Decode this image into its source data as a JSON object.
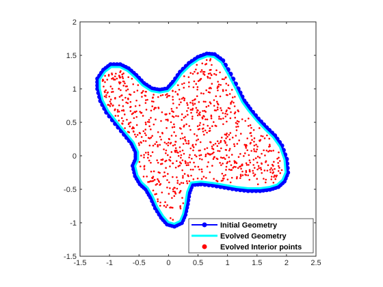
{
  "chart_data": {
    "type": "line",
    "title": "",
    "xlabel": "",
    "ylabel": "",
    "xlim": [
      -1.5,
      2.5
    ],
    "ylim": [
      -1.5,
      2
    ],
    "x_ticks": [
      -1.5,
      -1,
      -0.5,
      0,
      0.5,
      1,
      1.5,
      2,
      2.5
    ],
    "x_tick_labels": [
      "-1.5",
      "-1",
      "-0.5",
      "0",
      "0.5",
      "1",
      "1.5",
      "2",
      "2.5"
    ],
    "y_ticks": [
      -1.5,
      -1,
      -0.5,
      0,
      0.5,
      1,
      1.5,
      2
    ],
    "y_tick_labels": [
      "-1.5",
      "-1",
      "-0.5",
      "0",
      "0.5",
      "1",
      "1.5",
      "2"
    ],
    "grid": false,
    "legend_position": "bottom-right",
    "aspect": "equal",
    "series": [
      {
        "name": "Initial Geometry",
        "style": "line-with-markers",
        "color": "#0000ff",
        "closed": true,
        "x": [
          -1.1,
          -0.98,
          -0.82,
          -0.68,
          -0.55,
          -0.42,
          -0.28,
          -0.15,
          -0.02,
          0.08,
          0.2,
          0.35,
          0.5,
          0.65,
          0.78,
          0.92,
          1.05,
          1.18,
          1.28,
          1.38,
          1.52,
          1.66,
          1.8,
          1.92,
          2.0,
          2.02,
          1.96,
          1.86,
          1.72,
          1.55,
          1.35,
          1.15,
          0.95,
          0.75,
          0.55,
          0.4,
          0.35,
          0.32,
          0.28,
          0.22,
          0.1,
          -0.02,
          -0.12,
          -0.22,
          -0.3,
          -0.38,
          -0.48,
          -0.56,
          -0.6,
          -0.55,
          -0.55,
          -0.62,
          -0.75,
          -0.9,
          -1.05,
          -1.15,
          -1.2,
          -1.2
        ],
        "y": [
          1.28,
          1.36,
          1.36,
          1.3,
          1.2,
          1.08,
          1.0,
          0.98,
          1.0,
          1.1,
          1.25,
          1.38,
          1.47,
          1.52,
          1.51,
          1.42,
          1.22,
          1.0,
          0.82,
          0.7,
          0.55,
          0.42,
          0.3,
          0.15,
          -0.05,
          -0.25,
          -0.38,
          -0.46,
          -0.5,
          -0.52,
          -0.52,
          -0.5,
          -0.47,
          -0.44,
          -0.42,
          -0.43,
          -0.55,
          -0.72,
          -0.88,
          -1.0,
          -1.05,
          -1.02,
          -0.92,
          -0.78,
          -0.62,
          -0.5,
          -0.42,
          -0.3,
          -0.15,
          -0.05,
          0.05,
          0.18,
          0.32,
          0.48,
          0.65,
          0.82,
          1.0,
          1.15
        ]
      },
      {
        "name": "Evolved Geometry",
        "style": "line",
        "color": "#00ffff",
        "closed": true,
        "source": "initial-inset",
        "inset": 0.035
      },
      {
        "name": "Evolved Interior points",
        "style": "scatter",
        "color": "#ff0000",
        "count": 900,
        "region": "inside-evolved-geometry"
      }
    ],
    "legend": [
      {
        "label": "Initial Geometry",
        "color": "#0000ff",
        "marker": "line-dot"
      },
      {
        "label": "Evolved Geometry",
        "color": "#00ffff",
        "marker": "line"
      },
      {
        "label": "Evolved Interior points",
        "color": "#ff0000",
        "marker": "dot"
      }
    ]
  }
}
